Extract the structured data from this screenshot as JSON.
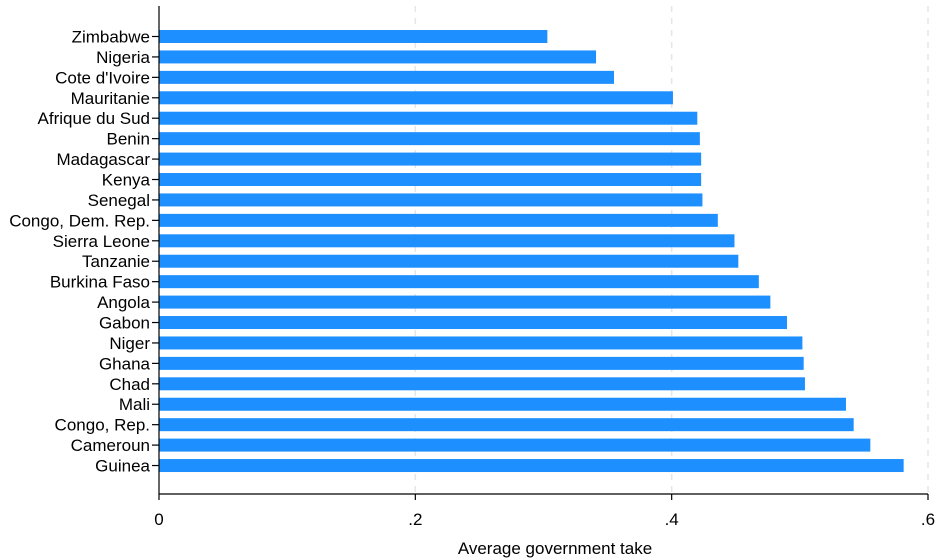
{
  "chart_data": {
    "type": "bar",
    "orientation": "horizontal",
    "categories": [
      "Zimbabwe",
      "Nigeria",
      "Cote d'Ivoire",
      "Mauritanie",
      "Afrique du Sud",
      "Benin",
      "Madagascar",
      "Kenya",
      "Senegal",
      "Congo, Dem. Rep.",
      "Sierra Leone",
      "Tanzanie",
      "Burkina Faso",
      "Angola",
      "Gabon",
      "Niger",
      "Ghana",
      "Chad",
      "Mali",
      "Congo, Rep.",
      "Cameroun",
      "Guinea"
    ],
    "values": [
      0.303,
      0.341,
      0.355,
      0.401,
      0.42,
      0.422,
      0.423,
      0.423,
      0.424,
      0.436,
      0.449,
      0.452,
      0.468,
      0.477,
      0.49,
      0.502,
      0.503,
      0.504,
      0.536,
      0.542,
      0.555,
      0.581
    ],
    "title": "",
    "xlabel": "Average government take",
    "ylabel": "",
    "xlim": [
      0,
      0.6
    ],
    "xticks": [
      0,
      0.2,
      0.4,
      0.6
    ],
    "xtick_labels": [
      "0",
      ".2",
      ".4",
      ".6"
    ],
    "grid": "vertical dashed",
    "bar_color": "#1e8fff"
  }
}
